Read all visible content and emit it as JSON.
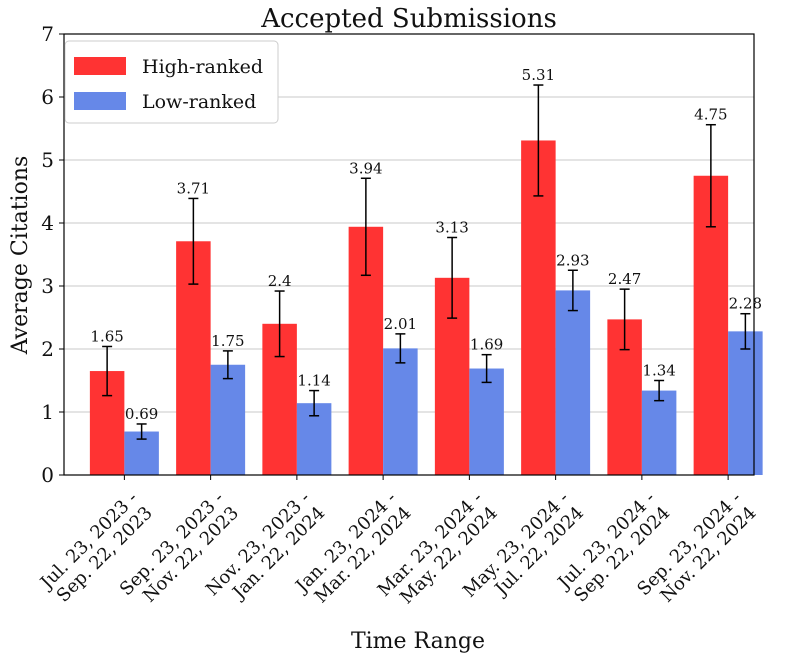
{
  "chart_data": {
    "type": "bar",
    "title": "Accepted Submissions",
    "xlabel": "Time Range",
    "ylabel": "Average Citations",
    "ylim": [
      0,
      7
    ],
    "yticks": [
      0,
      1,
      2,
      3,
      4,
      5,
      6,
      7
    ],
    "grid": true,
    "legend_position": "top-left",
    "categories": [
      [
        "Jul. 23, 2023 -",
        "Sep. 22, 2023"
      ],
      [
        "Sep. 23, 2023 -",
        "Nov. 22, 2023"
      ],
      [
        "Nov. 23, 2023 -",
        "Jan. 22, 2024"
      ],
      [
        "Jan. 23, 2024 -",
        "Mar. 22, 2024"
      ],
      [
        "Mar. 23, 2024 -",
        "May. 22, 2024"
      ],
      [
        "May. 23, 2024 -",
        "Jul. 22, 2024"
      ],
      [
        "Jul. 23, 2024 -",
        "Sep. 22, 2024"
      ],
      [
        "Sep. 23, 2024 -",
        "Nov. 22, 2024"
      ]
    ],
    "series": [
      {
        "name": "High-ranked",
        "color": "#ff3333",
        "values": [
          1.65,
          3.71,
          2.4,
          3.94,
          3.13,
          5.31,
          2.47,
          4.75
        ],
        "labels": [
          "1.65",
          "3.71",
          "2.4",
          "3.94",
          "3.13",
          "5.31",
          "2.47",
          "4.75"
        ],
        "error": [
          0.39,
          0.68,
          0.52,
          0.77,
          0.64,
          0.88,
          0.48,
          0.81
        ]
      },
      {
        "name": "Low-ranked",
        "color": "#6688e8",
        "values": [
          0.69,
          1.75,
          1.14,
          2.01,
          1.69,
          2.93,
          1.34,
          2.28
        ],
        "labels": [
          "0.69",
          "1.75",
          "1.14",
          "2.01",
          "1.69",
          "2.93",
          "1.34",
          "2.28"
        ],
        "error": [
          0.12,
          0.22,
          0.2,
          0.23,
          0.22,
          0.32,
          0.16,
          0.28
        ]
      }
    ]
  }
}
